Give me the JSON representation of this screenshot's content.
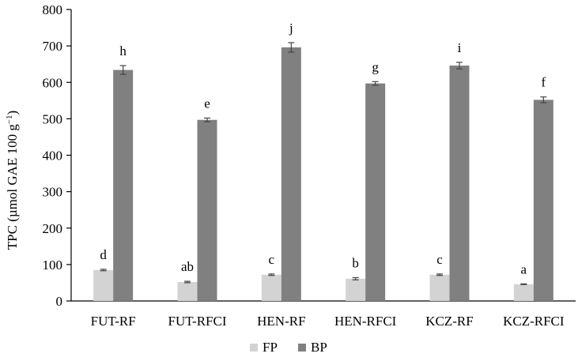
{
  "chart_data": {
    "type": "bar",
    "ylabel": "TPC (µmol GAE 100 g",
    "ylabel_sup": "−1",
    "ylabel_suffix": ")",
    "ylim": [
      0,
      800
    ],
    "yticks": [
      0,
      100,
      200,
      300,
      400,
      500,
      600,
      700,
      800
    ],
    "grid": false,
    "legend_position": "bottom",
    "categories": [
      "FUT-RF",
      "FUT-RFCI",
      "HEN-RF",
      "HEN-RFCI",
      "KCZ-RF",
      "KCZ-RFCI"
    ],
    "series": [
      {
        "name": "FP",
        "color": "#d3d3d3",
        "values": [
          85,
          52,
          72,
          61,
          72,
          46
        ],
        "errors": [
          2,
          2,
          2,
          3,
          2,
          1
        ],
        "labels": [
          "d",
          "ab",
          "c",
          "b",
          "c",
          "a"
        ]
      },
      {
        "name": "BP",
        "color": "#808080",
        "values": [
          634,
          497,
          696,
          597,
          646,
          552
        ],
        "errors": [
          12,
          5,
          13,
          5,
          9,
          8
        ],
        "labels": [
          "h",
          "e",
          "j",
          "g",
          "i",
          "f"
        ]
      }
    ]
  }
}
